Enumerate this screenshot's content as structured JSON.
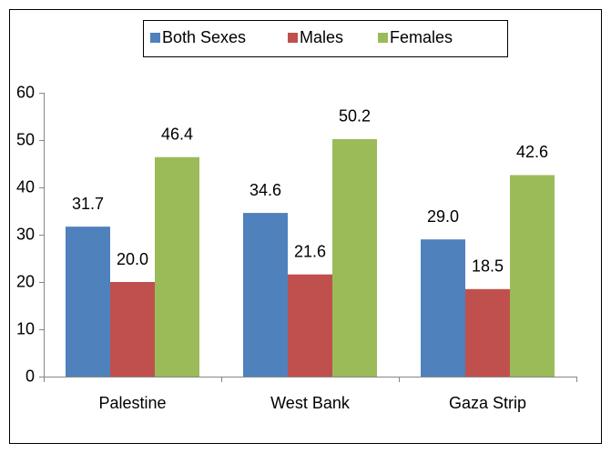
{
  "chart_data": {
    "type": "bar",
    "categories": [
      "Palestine",
      "West Bank",
      "Gaza Strip"
    ],
    "series": [
      {
        "name": "Both Sexes",
        "color": "#4f81bd",
        "values": [
          31.7,
          34.6,
          29
        ],
        "value_labels": [
          "31.7",
          "34.6",
          "29.0"
        ]
      },
      {
        "name": "Males",
        "color": "#c0504d",
        "values": [
          20,
          21.6,
          18.5
        ],
        "value_labels": [
          "20.0",
          "21.6",
          "18.5"
        ]
      },
      {
        "name": "Females",
        "color": "#9bbb59",
        "values": [
          46.4,
          50.2,
          42.6
        ],
        "value_labels": [
          "46.4",
          "50.2",
          "42.6"
        ]
      }
    ],
    "ylim": [
      0,
      60
    ],
    "yticks": [
      0,
      10,
      20,
      30,
      40,
      50,
      60
    ],
    "legend": "top",
    "grid": false
  }
}
